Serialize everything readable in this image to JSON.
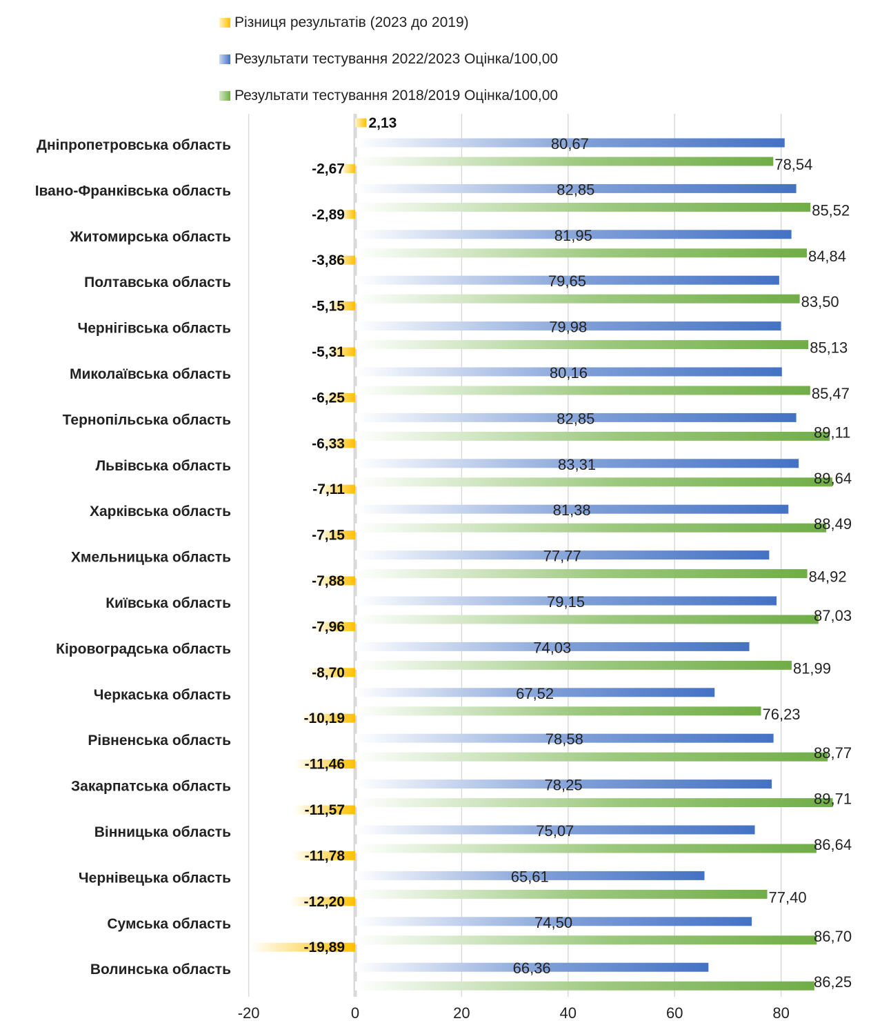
{
  "chart_data": {
    "type": "bar",
    "orientation": "horizontal",
    "categories": [
      "Дніпропетровська область",
      "Івано-Франківська область",
      "Житомирська область",
      "Полтавська область",
      "Чернігівська область",
      "Миколаївська область",
      "Тернопільська область",
      "Львівська область",
      "Харківська область",
      "Хмельницька область",
      "Київська область",
      "Кіровоградська область",
      "Черкаська область",
      "Рівненська область",
      "Закарпатська область",
      "Вінницька область",
      "Чернівецька область",
      "Сумська область",
      "Волинська область"
    ],
    "series": [
      {
        "name": "Різниця результатів (2023 до 2019)",
        "color": "#ffc000",
        "values": [
          2.13,
          -2.67,
          -2.89,
          -3.86,
          -5.15,
          -5.31,
          -6.25,
          -6.33,
          -7.11,
          -7.15,
          -7.88,
          -7.96,
          -8.7,
          -10.19,
          -11.46,
          -11.57,
          -11.78,
          -12.2,
          -19.89
        ],
        "labels": [
          "2,13",
          "-2,67",
          "-2,89",
          "-3,86",
          "-5,15",
          "-5,31",
          "-6,25",
          "-6,33",
          "-7,11",
          "-7,15",
          "-7,88",
          "-7,96",
          "-8,70",
          "-10,19",
          "-11,46",
          "-11,57",
          "-11,78",
          "-12,20",
          "-19,89"
        ]
      },
      {
        "name": "Результати тестування 2022/2023 Оцінка/100,00",
        "color": "#4472c4",
        "values": [
          80.67,
          82.85,
          81.95,
          79.65,
          79.98,
          80.16,
          82.85,
          83.31,
          81.38,
          77.77,
          79.15,
          74.03,
          67.52,
          78.58,
          78.25,
          75.07,
          65.61,
          74.5,
          66.36
        ],
        "labels": [
          "80,67",
          "82,85",
          "81,95",
          "79,65",
          "79,98",
          "80,16",
          "82,85",
          "83,31",
          "81,38",
          "77,77",
          "79,15",
          "74,03",
          "67,52",
          "78,58",
          "78,25",
          "75,07",
          "65,61",
          "74,50",
          "66,36"
        ]
      },
      {
        "name": "Результати тестування 2018/2019 Оцінка/100,00",
        "color": "#70ad47",
        "values": [
          78.54,
          85.52,
          84.84,
          83.5,
          85.13,
          85.47,
          89.11,
          89.64,
          88.49,
          84.92,
          87.03,
          81.99,
          76.23,
          88.77,
          89.71,
          86.64,
          77.4,
          86.7,
          86.25
        ],
        "labels": [
          "78,54",
          "85,52",
          "84,84",
          "83,50",
          "85,13",
          "85,47",
          "89,11",
          "89,64",
          "88,49",
          "84,92",
          "87,03",
          "81,99",
          "76,23",
          "88,77",
          "89,71",
          "86,64",
          "77,40",
          "86,70",
          "86,25"
        ]
      }
    ],
    "xaxis": {
      "min": -20,
      "max": 80,
      "ticks": [
        -20,
        0,
        20,
        40,
        60,
        80
      ]
    },
    "grid": "vertical",
    "legend_position": "top"
  }
}
